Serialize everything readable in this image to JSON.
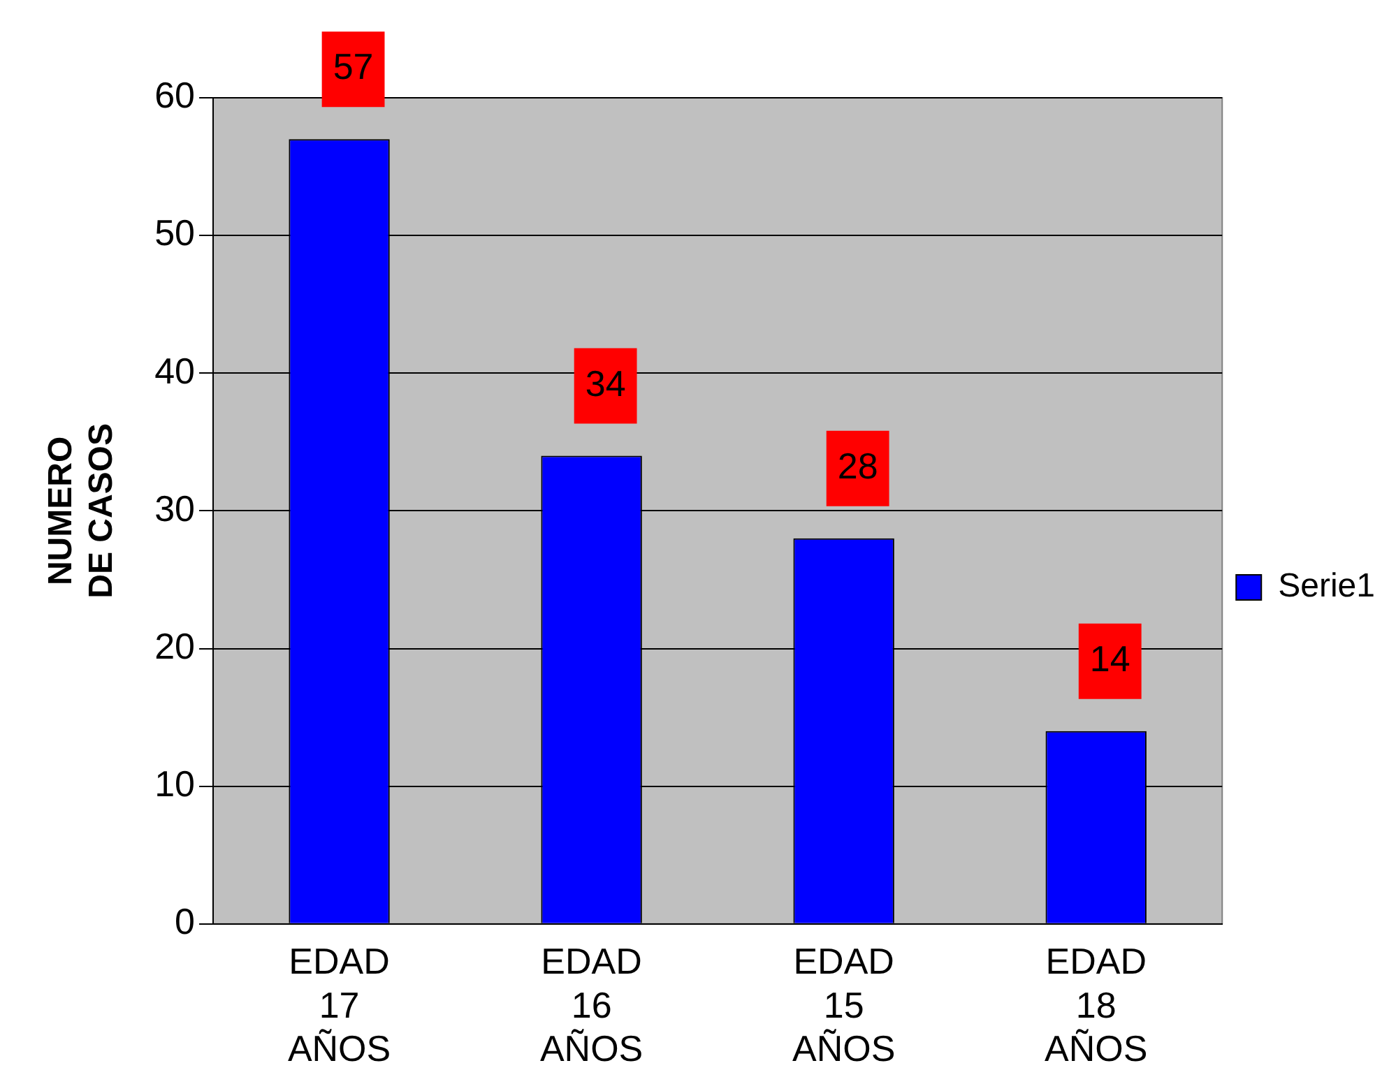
{
  "chart_data": {
    "type": "bar",
    "ylabel": "NUMERO DE CASOS",
    "categories": [
      "EDAD 17 AÑOS",
      "EDAD 16 AÑOS",
      "EDAD 15 AÑOS",
      "EDAD 18 AÑOS"
    ],
    "series": [
      {
        "name": "Serie1",
        "color": "#0000ff",
        "values": [
          57,
          34,
          28,
          14
        ]
      }
    ],
    "ylim": [
      0,
      60
    ],
    "yticks": [
      0,
      10,
      20,
      30,
      40,
      50,
      60
    ],
    "grid": "y",
    "legend": "right",
    "data_labels": true
  }
}
